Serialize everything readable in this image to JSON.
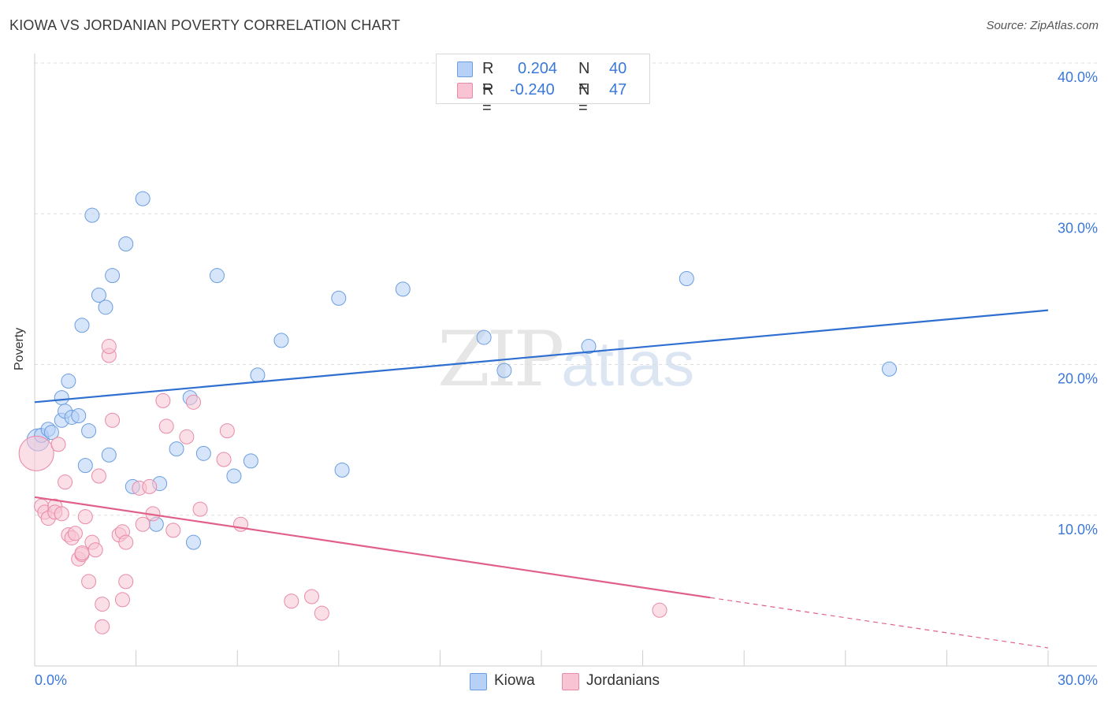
{
  "title": "KIOWA VS JORDANIAN POVERTY CORRELATION CHART",
  "source": "Source: ZipAtlas.com",
  "watermark": {
    "zip": "ZIP",
    "atlas": "atlas"
  },
  "colors": {
    "kiowa_fill": "#b7d0f5",
    "kiowa_stroke": "#6a9ee0",
    "kiowa_line": "#2f6fd0",
    "jord_fill": "#f8c4d4",
    "jord_stroke": "#e98aa8",
    "jord_line": "#e0608a",
    "axis_text": "#3b78d8",
    "grid": "#dddddd"
  },
  "legend": {
    "rows": [
      {
        "r_label": "R =",
        "r_value": "0.204",
        "n_label": "N =",
        "n_value": "40"
      },
      {
        "r_label": "R =",
        "r_value": "-0.240",
        "n_label": "N =",
        "n_value": "47"
      }
    ]
  },
  "bottom_legend": {
    "kiowa": "Kiowa",
    "jordanians": "Jordanians"
  },
  "chart_data": {
    "type": "scatter",
    "xlabel": "",
    "ylabel": "Poverty",
    "xlim": [
      0,
      30
    ],
    "ylim": [
      0,
      40
    ],
    "x_tick_labels": [
      "0.0%",
      "30.0%"
    ],
    "y_ticks": [
      10,
      20,
      30,
      40
    ],
    "y_tick_labels": [
      "10.0%",
      "20.0%",
      "30.0%",
      "40.0%"
    ],
    "grid": true,
    "series": [
      {
        "name": "Kiowa",
        "trend": {
          "x0": 0,
          "y0": 17.5,
          "x1": 30,
          "y1": 23.6,
          "dashed_from": null
        },
        "points": [
          [
            0.1,
            15.0,
            14
          ],
          [
            0.2,
            15.3,
            9
          ],
          [
            0.4,
            15.7,
            9
          ],
          [
            0.5,
            15.5,
            9
          ],
          [
            0.8,
            16.3,
            9
          ],
          [
            0.8,
            17.8,
            9
          ],
          [
            0.9,
            16.9,
            9
          ],
          [
            1.0,
            18.9,
            9
          ],
          [
            1.1,
            16.5,
            9
          ],
          [
            1.3,
            16.6,
            9
          ],
          [
            1.4,
            22.6,
            9
          ],
          [
            1.5,
            13.3,
            9
          ],
          [
            1.6,
            15.6,
            9
          ],
          [
            1.7,
            29.9,
            9
          ],
          [
            1.9,
            24.6,
            9
          ],
          [
            2.1,
            23.8,
            9
          ],
          [
            2.2,
            14.0,
            9
          ],
          [
            2.3,
            25.9,
            9
          ],
          [
            2.7,
            28.0,
            9
          ],
          [
            2.9,
            11.9,
            9
          ],
          [
            3.2,
            31.0,
            9
          ],
          [
            3.6,
            9.4,
            9
          ],
          [
            3.7,
            12.1,
            9
          ],
          [
            4.2,
            14.4,
            9
          ],
          [
            4.6,
            17.8,
            9
          ],
          [
            4.7,
            8.2,
            9
          ],
          [
            5.0,
            14.1,
            9
          ],
          [
            5.4,
            25.9,
            9
          ],
          [
            5.9,
            12.6,
            9
          ],
          [
            6.4,
            13.6,
            9
          ],
          [
            6.6,
            19.3,
            9
          ],
          [
            7.3,
            21.6,
            9
          ],
          [
            9.0,
            24.4,
            9
          ],
          [
            9.1,
            13.0,
            9
          ],
          [
            10.9,
            25.0,
            9
          ],
          [
            13.3,
            21.8,
            9
          ],
          [
            13.9,
            19.6,
            9
          ],
          [
            16.4,
            21.2,
            9
          ],
          [
            19.3,
            25.7,
            9
          ],
          [
            25.3,
            19.7,
            9
          ]
        ]
      },
      {
        "name": "Jordanians",
        "trend": {
          "x0": 0,
          "y0": 11.2,
          "x1": 30,
          "y1": 1.2,
          "dashed_from": 20
        },
        "points": [
          [
            0.05,
            14.1,
            22
          ],
          [
            0.2,
            10.6,
            9
          ],
          [
            0.3,
            10.2,
            9
          ],
          [
            0.4,
            9.8,
            9
          ],
          [
            0.6,
            10.6,
            9
          ],
          [
            0.6,
            10.2,
            9
          ],
          [
            0.7,
            14.7,
            9
          ],
          [
            0.8,
            10.1,
            9
          ],
          [
            0.9,
            12.2,
            9
          ],
          [
            1.0,
            8.7,
            9
          ],
          [
            1.1,
            8.5,
            9
          ],
          [
            1.2,
            8.8,
            9
          ],
          [
            1.3,
            7.1,
            9
          ],
          [
            1.4,
            7.4,
            9
          ],
          [
            1.5,
            9.9,
            9
          ],
          [
            1.6,
            5.6,
            9
          ],
          [
            1.7,
            8.2,
            9
          ],
          [
            1.8,
            7.7,
            9
          ],
          [
            1.9,
            12.6,
            9
          ],
          [
            2.0,
            4.1,
            9
          ],
          [
            2.0,
            2.6,
            9
          ],
          [
            2.2,
            20.6,
            9
          ],
          [
            2.2,
            21.2,
            9
          ],
          [
            2.3,
            16.3,
            9
          ],
          [
            2.5,
            8.7,
            9
          ],
          [
            2.6,
            8.9,
            9
          ],
          [
            2.6,
            4.4,
            9
          ],
          [
            2.7,
            8.2,
            9
          ],
          [
            2.7,
            5.6,
            9
          ],
          [
            3.1,
            11.8,
            9
          ],
          [
            3.2,
            9.4,
            9
          ],
          [
            3.4,
            11.9,
            9
          ],
          [
            3.5,
            10.1,
            9
          ],
          [
            3.8,
            17.6,
            9
          ],
          [
            3.9,
            15.9,
            9
          ],
          [
            4.1,
            9.0,
            9
          ],
          [
            4.5,
            15.2,
            9
          ],
          [
            4.7,
            17.5,
            9
          ],
          [
            4.9,
            10.4,
            9
          ],
          [
            5.6,
            13.7,
            9
          ],
          [
            5.7,
            15.6,
            9
          ],
          [
            6.1,
            9.4,
            9
          ],
          [
            7.6,
            4.3,
            9
          ],
          [
            8.2,
            4.6,
            9
          ],
          [
            8.5,
            3.5,
            9
          ],
          [
            18.5,
            3.7,
            9
          ],
          [
            1.4,
            7.5,
            9
          ]
        ]
      }
    ]
  }
}
